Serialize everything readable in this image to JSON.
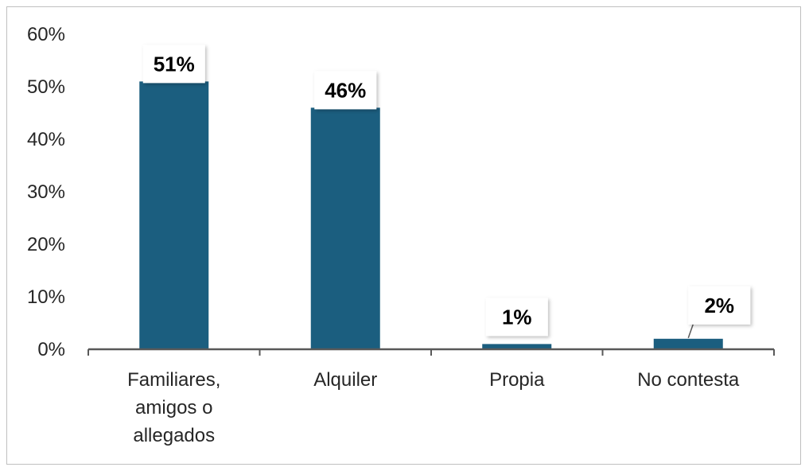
{
  "chart_data": {
    "type": "bar",
    "categories": [
      [
        "Familiares,",
        "amigos o",
        "allegados"
      ],
      [
        "Alquiler"
      ],
      [
        "Propia"
      ],
      [
        "No contesta"
      ]
    ],
    "values": [
      51,
      46,
      1,
      2
    ],
    "data_labels": [
      "51%",
      "46%",
      "1%",
      "2%"
    ],
    "y_ticks": [
      "0%",
      "10%",
      "20%",
      "30%",
      "40%",
      "50%",
      "60%"
    ],
    "ylim": [
      0,
      60
    ],
    "title": "",
    "xlabel": "",
    "ylabel": "",
    "grid": false,
    "legend": "none",
    "bar_color": "#1b5e7f",
    "axis_color": "#595959"
  }
}
